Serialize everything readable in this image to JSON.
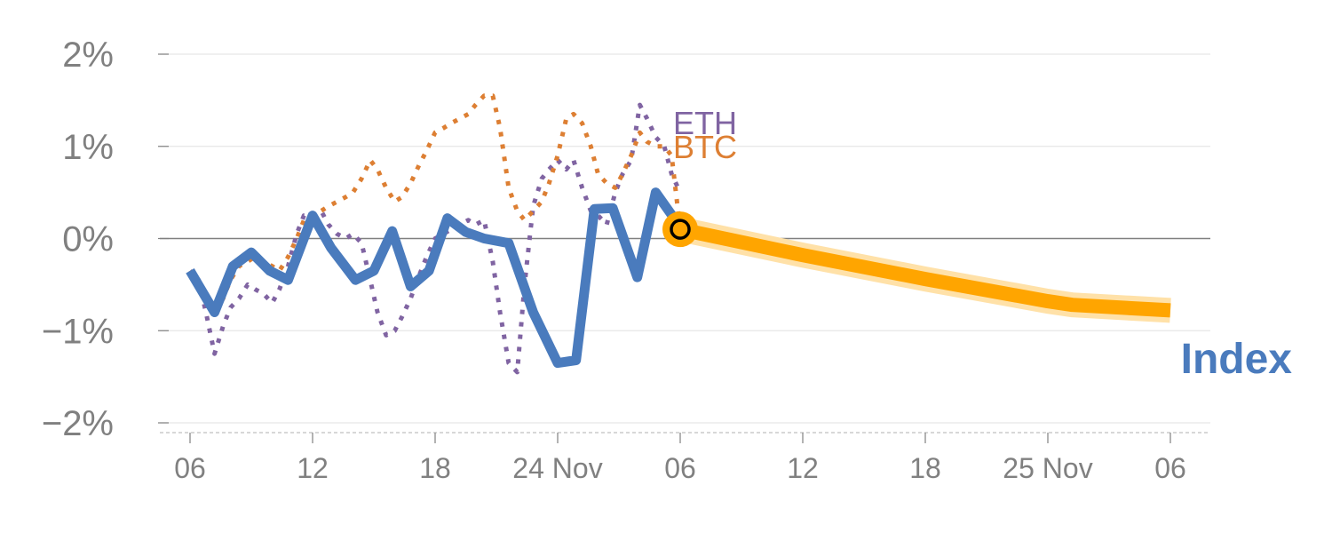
{
  "chart_data": {
    "type": "line",
    "title": "",
    "xlabel": "",
    "ylabel": "",
    "ylim": [
      -2,
      2
    ],
    "y_ticks": [
      2,
      1,
      0,
      -1,
      -2
    ],
    "y_tick_labels": [
      "2%",
      "1%",
      "0%",
      "−1%",
      "−2%"
    ],
    "x_range": [
      0,
      80.5
    ],
    "x_ticks": [
      0,
      10,
      20,
      30,
      40,
      50,
      60,
      70,
      80
    ],
    "x_tick_labels": [
      "06",
      "12",
      "18",
      "24 Nov",
      "06",
      "12",
      "18",
      "25 Nov",
      "06"
    ],
    "grid": true,
    "series": [
      {
        "name": "ETH",
        "style": "dotted",
        "color": "#8064a2",
        "x": [
          0,
          0.7,
          1.3,
          2,
          2.7,
          3.3,
          4,
          4.7,
          5.3,
          6,
          6.7,
          7.3,
          8,
          8.7,
          9.3,
          10,
          10.7,
          11.3,
          12,
          12.7,
          13.3,
          14,
          14.7,
          15.3,
          16,
          16.7,
          17.3,
          18,
          18.7,
          19.3,
          20,
          20.7,
          21.3,
          22,
          22.7,
          23.3,
          24,
          24.7,
          25.3,
          26,
          26.7,
          27.3,
          28,
          28.7,
          29.3,
          30,
          30.7,
          31.3,
          32,
          32.7,
          33.3,
          34,
          34.7,
          35.3,
          36,
          36.7,
          37.3,
          38,
          38.7,
          39.3,
          40
        ],
        "values": [
          -0.35,
          -0.45,
          -0.8,
          -1.25,
          -0.95,
          -0.75,
          -0.65,
          -0.5,
          -0.55,
          -0.6,
          -0.7,
          -0.55,
          -0.3,
          0.05,
          0.25,
          0.25,
          0.3,
          0.15,
          0.05,
          0.0,
          0.05,
          -0.05,
          -0.45,
          -0.8,
          -1.05,
          -1.0,
          -0.85,
          -0.65,
          -0.4,
          -0.2,
          0.0,
          0.05,
          0.1,
          0.15,
          0.2,
          0.15,
          0.2,
          -0.25,
          -0.8,
          -1.35,
          -1.45,
          -0.5,
          0.35,
          0.65,
          0.75,
          0.85,
          0.75,
          0.85,
          0.55,
          0.3,
          0.25,
          0.15,
          0.5,
          0.7,
          0.85,
          1.45,
          1.3,
          1.1,
          1.0,
          0.7,
          0.5
        ]
      },
      {
        "name": "BTC",
        "style": "dotted",
        "color": "#dd7f33",
        "x": [
          0,
          0.7,
          1.3,
          2,
          2.7,
          3.3,
          4,
          4.7,
          5.3,
          6,
          6.7,
          7.3,
          8,
          8.7,
          9.3,
          10,
          10.7,
          11.3,
          12,
          12.7,
          13.3,
          14,
          14.7,
          15.3,
          16,
          16.7,
          17.3,
          18,
          18.7,
          19.3,
          20,
          20.7,
          21.3,
          22,
          22.7,
          23.3,
          24,
          24.7,
          25.3,
          26,
          26.7,
          27.3,
          28,
          28.7,
          29.3,
          30,
          30.7,
          31.3,
          32,
          32.7,
          33.3,
          34,
          34.7,
          35.3,
          36,
          36.7,
          37.3,
          38,
          38.7,
          39.3,
          40
        ],
        "values": [
          -0.35,
          -0.5,
          -0.7,
          -0.8,
          -0.65,
          -0.45,
          -0.3,
          -0.25,
          -0.2,
          -0.25,
          -0.3,
          -0.35,
          -0.2,
          0.0,
          0.2,
          0.25,
          0.3,
          0.35,
          0.4,
          0.45,
          0.5,
          0.65,
          0.85,
          0.75,
          0.55,
          0.4,
          0.45,
          0.6,
          0.8,
          0.95,
          1.15,
          1.2,
          1.25,
          1.3,
          1.35,
          1.45,
          1.55,
          1.55,
          1.2,
          0.55,
          0.3,
          0.2,
          0.3,
          0.4,
          0.6,
          0.9,
          1.3,
          1.35,
          1.25,
          1.0,
          0.7,
          0.6,
          0.55,
          0.7,
          0.9,
          1.15,
          1.05,
          1.0,
          1.0,
          0.9,
          0.1
        ]
      },
      {
        "name": "Index",
        "style": "solid",
        "color": "#4a7bbd",
        "x": [
          0,
          2,
          3.5,
          5,
          6.5,
          8,
          10,
          11.5,
          13.5,
          15,
          16.5,
          18,
          19.5,
          21,
          22.5,
          24,
          26,
          28,
          30,
          31.5,
          33,
          34.5,
          36.5,
          38,
          39.5,
          40
        ],
        "values": [
          -0.35,
          -0.8,
          -0.3,
          -0.15,
          -0.35,
          -0.45,
          0.25,
          -0.1,
          -0.45,
          -0.35,
          0.08,
          -0.52,
          -0.35,
          0.22,
          0.07,
          0.0,
          -0.05,
          -0.8,
          -1.35,
          -1.32,
          0.32,
          0.33,
          -0.42,
          0.5,
          0.22,
          0.1
        ]
      },
      {
        "name": "Index",
        "style": "forecast",
        "color": "#ffa500",
        "x": [
          40,
          50,
          60,
          70,
          72,
          80
        ],
        "values": [
          0.1,
          -0.18,
          -0.44,
          -0.68,
          -0.72,
          -0.78
        ]
      }
    ],
    "labels": {
      "eth": "ETH",
      "btc": "BTC",
      "index": "Index"
    },
    "marker": {
      "x": 40,
      "value": 0.1
    },
    "colors": {
      "eth": "#8064a2",
      "btc": "#dd7f33",
      "index": "#4a7bbd",
      "forecast": "#ffa500",
      "grid": "#e6e6e6",
      "zero_line": "#808080",
      "tick_text": "#808080"
    }
  }
}
